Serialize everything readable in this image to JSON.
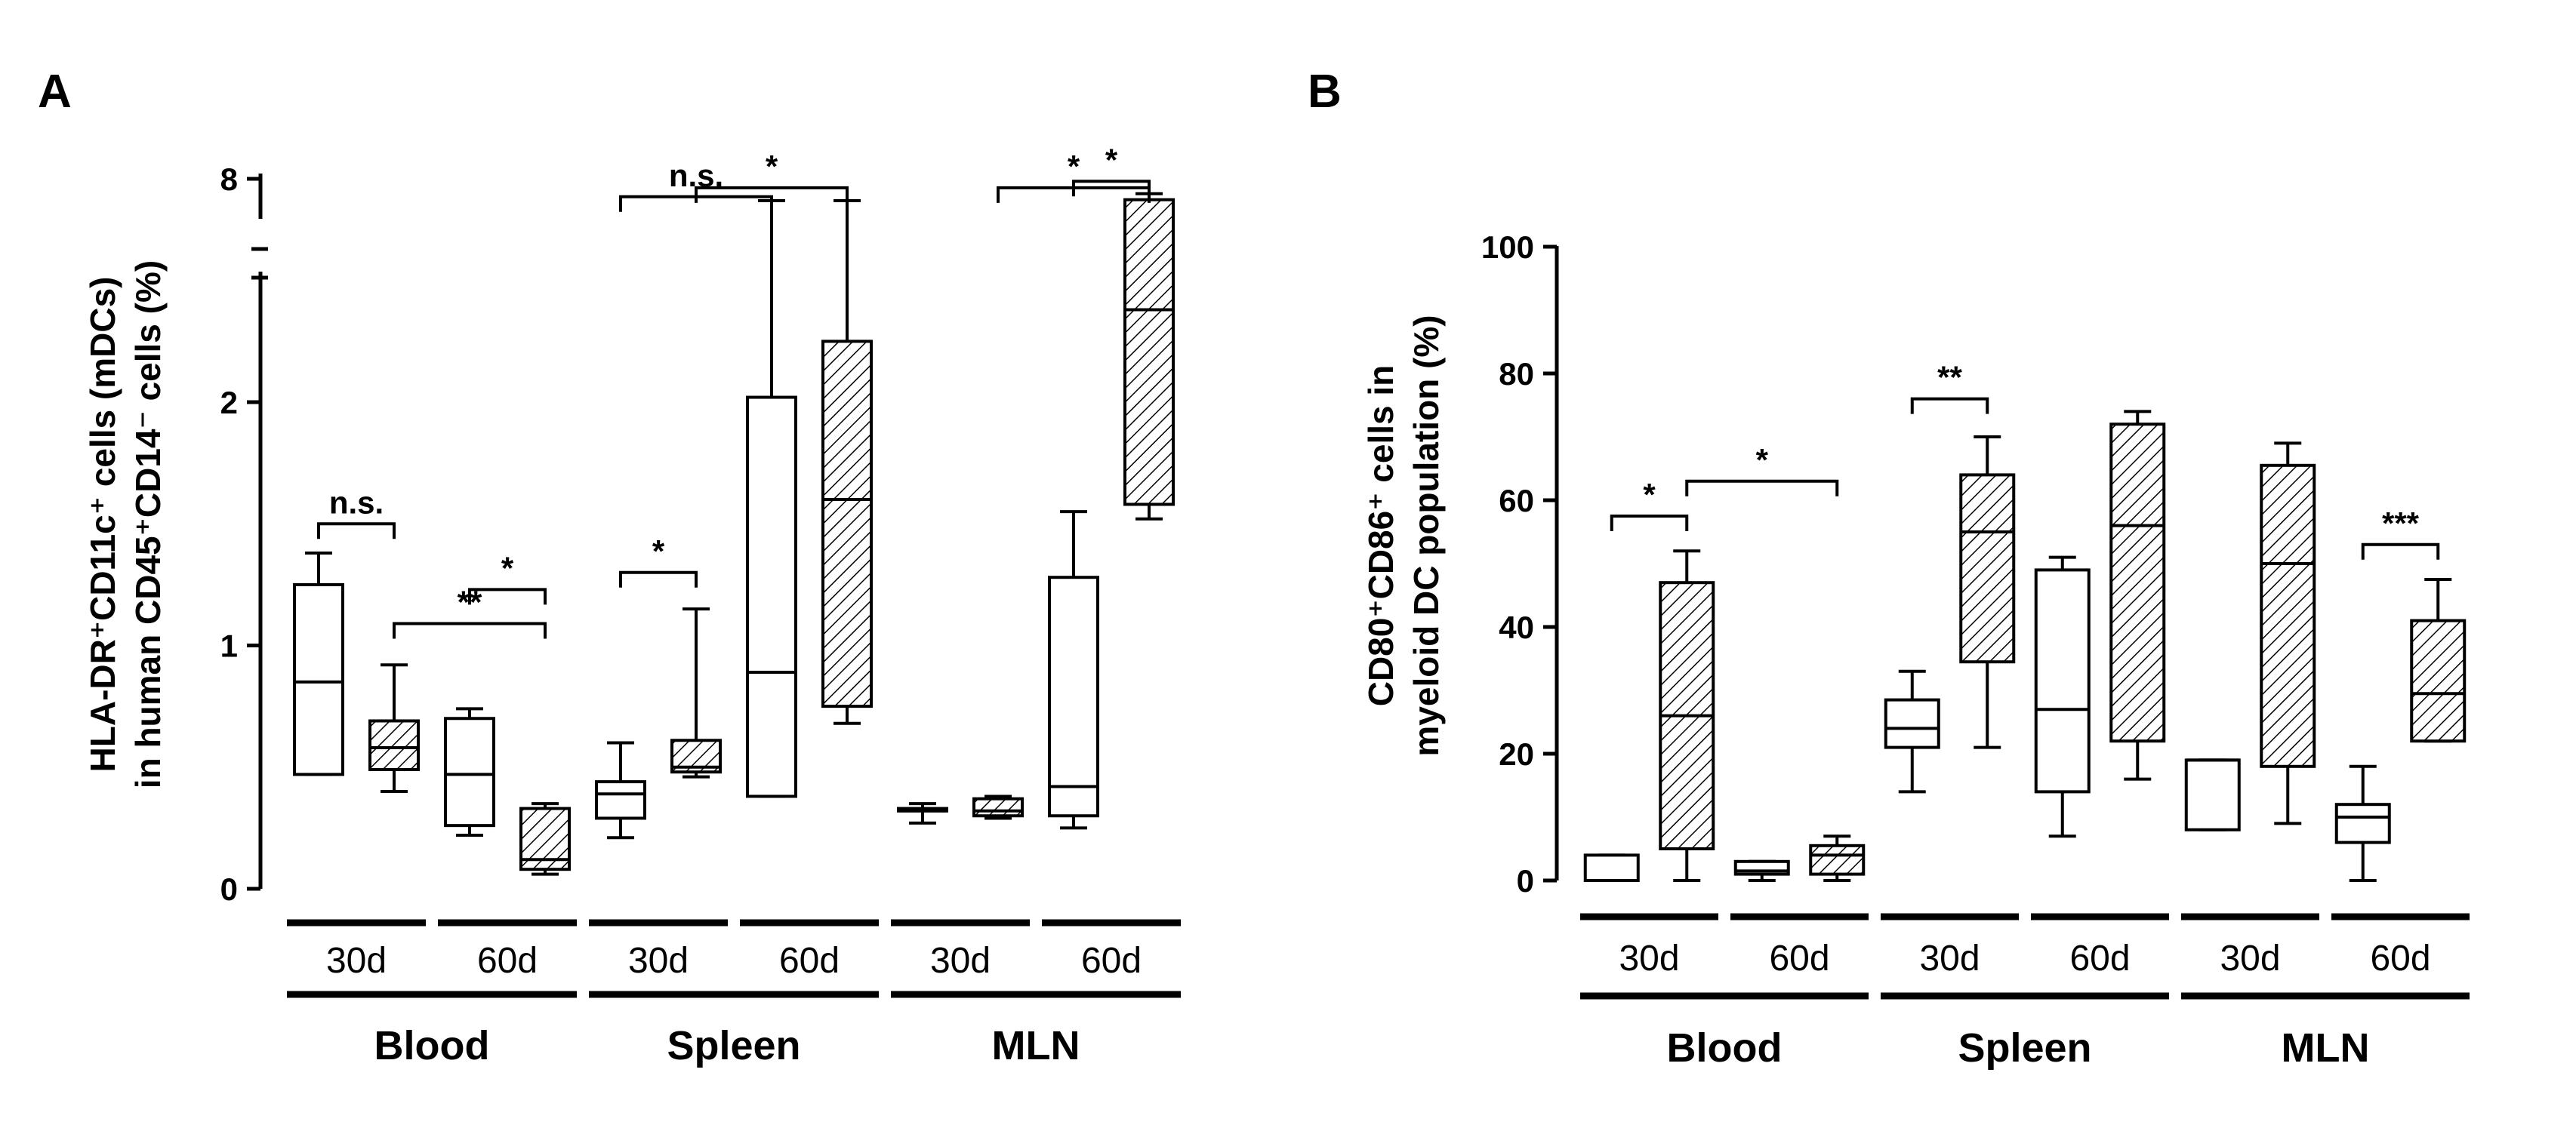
{
  "chart_data": [
    {
      "type": "box",
      "panel": "A",
      "ylabel": "HLA-DR⁺CD11c⁺ cells (mDCs) in human CD45⁺CD14⁻ cells (%)",
      "ylabel_lines": [
        "HLA-DR⁺CD11c⁺ cells (mDCs)",
        "in human CD45⁺CD14⁻ cells (%)"
      ],
      "ylim": [
        0,
        8
      ],
      "axis_break": true,
      "y_segments": [
        {
          "from": 0,
          "to": 3
        },
        {
          "from": 7.5,
          "to": 8
        }
      ],
      "yticks": [
        {
          "v": 0,
          "label": "0"
        },
        {
          "v": 1,
          "label": "1"
        },
        {
          "v": 2,
          "label": "2"
        },
        {
          "v": 8,
          "label": "8"
        }
      ],
      "day_groups": [
        "30d",
        "60d",
        "30d",
        "60d",
        "30d",
        "60d"
      ],
      "tissue_groups": [
        "Blood",
        "Spleen",
        "MLN"
      ],
      "boxes": [
        {
          "group": "Blood 30d",
          "pattern": "open",
          "min": 0.47,
          "q1": 0.47,
          "median": 0.85,
          "q3": 1.25,
          "max": 1.38
        },
        {
          "group": "Blood 30d",
          "pattern": "hatched",
          "min": 0.4,
          "q1": 0.49,
          "median": 0.58,
          "q3": 0.69,
          "max": 0.92
        },
        {
          "group": "Blood 60d",
          "pattern": "open",
          "min": 0.22,
          "q1": 0.26,
          "median": 0.47,
          "q3": 0.7,
          "max": 0.74
        },
        {
          "group": "Blood 60d",
          "pattern": "hatched",
          "min": 0.06,
          "q1": 0.08,
          "median": 0.12,
          "q3": 0.33,
          "max": 0.35
        },
        {
          "group": "Spleen 30d",
          "pattern": "open",
          "min": 0.21,
          "q1": 0.29,
          "median": 0.39,
          "q3": 0.44,
          "max": 0.6
        },
        {
          "group": "Spleen 30d",
          "pattern": "hatched",
          "min": 0.46,
          "q1": 0.48,
          "median": 0.5,
          "q3": 0.61,
          "max": 1.15
        },
        {
          "group": "Spleen 60d",
          "pattern": "open",
          "min": 0.38,
          "q1": 0.38,
          "median": 0.89,
          "q3": 2.02,
          "max": 7.56
        },
        {
          "group": "Spleen 60d",
          "pattern": "hatched",
          "min": 0.68,
          "q1": 0.75,
          "median": 1.6,
          "q3": 2.25,
          "max": 7.56
        },
        {
          "group": "MLN 30d",
          "pattern": "open",
          "min": 0.27,
          "q1": 0.32,
          "median": 0.32,
          "q3": 0.33,
          "max": 0.35
        },
        {
          "group": "MLN 30d",
          "pattern": "hatched",
          "min": 0.29,
          "q1": 0.3,
          "median": 0.32,
          "q3": 0.37,
          "max": 0.38
        },
        {
          "group": "MLN 60d",
          "pattern": "open",
          "min": 0.25,
          "q1": 0.3,
          "median": 0.42,
          "q3": 1.28,
          "max": 1.55
        },
        {
          "group": "MLN 60d",
          "pattern": "hatched",
          "min": 1.52,
          "q1": 1.58,
          "median": 2.38,
          "q3": 7.58,
          "max": 7.7
        }
      ],
      "annotations": [
        {
          "label": "n.s.",
          "from": 1,
          "to": 2,
          "y": 1.5
        },
        {
          "label": "**",
          "from": 2,
          "to": 4,
          "y": 1.09
        },
        {
          "label": "*",
          "from": 3,
          "to": 4,
          "y": 1.23
        },
        {
          "label": "*",
          "from": 5,
          "to": 6,
          "y": 1.3
        },
        {
          "label": "n.s.",
          "from": 5,
          "to": 7,
          "y": 7.64
        },
        {
          "label": "*",
          "from": 6,
          "to": 8,
          "y": 7.82
        },
        {
          "label": "*",
          "from": 10,
          "to": 12,
          "y": 7.82
        },
        {
          "label": "*",
          "from": 11,
          "to": 12,
          "y": 7.95
        }
      ]
    },
    {
      "type": "box",
      "panel": "B",
      "ylabel": "CD80⁺CD86⁺ cells in myeloid DC population (%)",
      "ylabel_lines": [
        "CD80⁺CD86⁺ cells in",
        "myeloid DC population (%)"
      ],
      "ylim": [
        0,
        100
      ],
      "yticks": [
        {
          "v": 0,
          "label": "0"
        },
        {
          "v": 20,
          "label": "20"
        },
        {
          "v": 40,
          "label": "40"
        },
        {
          "v": 60,
          "label": "60"
        },
        {
          "v": 80,
          "label": "80"
        },
        {
          "v": 100,
          "label": "100"
        }
      ],
      "day_groups": [
        "30d",
        "60d",
        "30d",
        "60d",
        "30d",
        "60d"
      ],
      "tissue_groups": [
        "Blood",
        "Spleen",
        "MLN"
      ],
      "boxes": [
        {
          "group": "Blood 30d",
          "pattern": "open",
          "min": 0,
          "q1": 0,
          "median": 0,
          "q3": 4,
          "max": 4
        },
        {
          "group": "Blood 30d",
          "pattern": "hatched",
          "min": 0,
          "q1": 5,
          "median": 26,
          "q3": 47,
          "max": 52
        },
        {
          "group": "Blood 60d",
          "pattern": "open",
          "min": 0,
          "q1": 1,
          "median": 1.5,
          "q3": 3,
          "max": 3
        },
        {
          "group": "Blood 60d",
          "pattern": "hatched",
          "min": 0,
          "q1": 1,
          "median": 4,
          "q3": 5.5,
          "max": 7
        },
        {
          "group": "Spleen 30d",
          "pattern": "open",
          "min": 14,
          "q1": 21,
          "median": 24,
          "q3": 28.5,
          "max": 33
        },
        {
          "group": "Spleen 30d",
          "pattern": "hatched",
          "min": 21,
          "q1": 34.5,
          "median": 55,
          "q3": 64,
          "max": 70
        },
        {
          "group": "Spleen 60d",
          "pattern": "open",
          "min": 7,
          "q1": 14,
          "median": 27,
          "q3": 49,
          "max": 51
        },
        {
          "group": "Spleen 60d",
          "pattern": "hatched",
          "min": 16,
          "q1": 22,
          "median": 56,
          "q3": 72,
          "max": 74
        },
        {
          "group": "MLN 30d",
          "pattern": "open",
          "min": 8,
          "q1": 8,
          "median": 19,
          "q3": 19,
          "max": 19
        },
        {
          "group": "MLN 30d",
          "pattern": "hatched",
          "min": 9,
          "q1": 18,
          "median": 50,
          "q3": 65.5,
          "max": 69
        },
        {
          "group": "MLN 60d",
          "pattern": "open",
          "min": 0,
          "q1": 6,
          "median": 10,
          "q3": 12,
          "max": 18
        },
        {
          "group": "MLN 60d",
          "pattern": "hatched",
          "min": 22,
          "q1": 22,
          "median": 29.5,
          "q3": 41,
          "max": 47.5
        }
      ],
      "annotations": [
        {
          "label": "*",
          "from": 1,
          "to": 2,
          "y": 57.5
        },
        {
          "label": "*",
          "from": 2,
          "to": 4,
          "y": 63
        },
        {
          "label": "**",
          "from": 5,
          "to": 6,
          "y": 76
        },
        {
          "label": "***",
          "from": 11,
          "to": 12,
          "y": 53
        }
      ]
    }
  ]
}
